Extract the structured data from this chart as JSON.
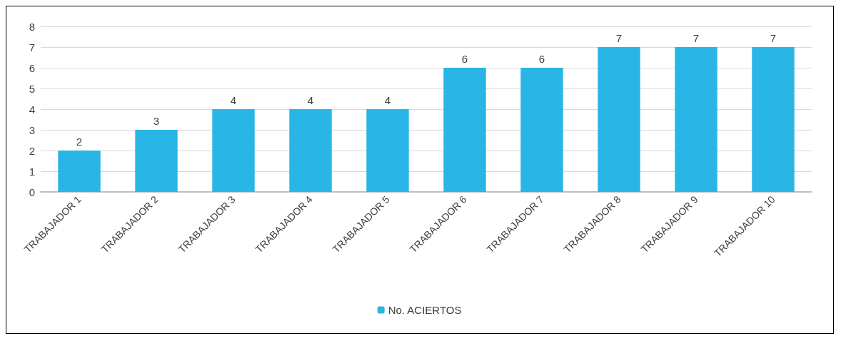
{
  "chart_data": {
    "type": "bar",
    "categories": [
      "TRABAJADOR 1",
      "TRABAJADOR 2",
      "TRABAJADOR 3",
      "TRABAJADOR 4",
      "TRABAJADOR 5",
      "TRABAJADOR 6",
      "TRABAJADOR 7",
      "TRABAJADOR 8",
      "TRABAJADOR 9",
      "TRABAJADOR 10"
    ],
    "series": [
      {
        "name": "No. ACIERTOS",
        "color": "#29b5e6",
        "values": [
          2,
          3,
          4,
          4,
          4,
          6,
          6,
          7,
          7,
          7
        ]
      }
    ],
    "ylim": [
      0,
      8
    ],
    "yticks": [
      0,
      1,
      2,
      3,
      4,
      5,
      6,
      7,
      8
    ],
    "grid": "y",
    "legend": "bottom",
    "data_labels": true
  }
}
